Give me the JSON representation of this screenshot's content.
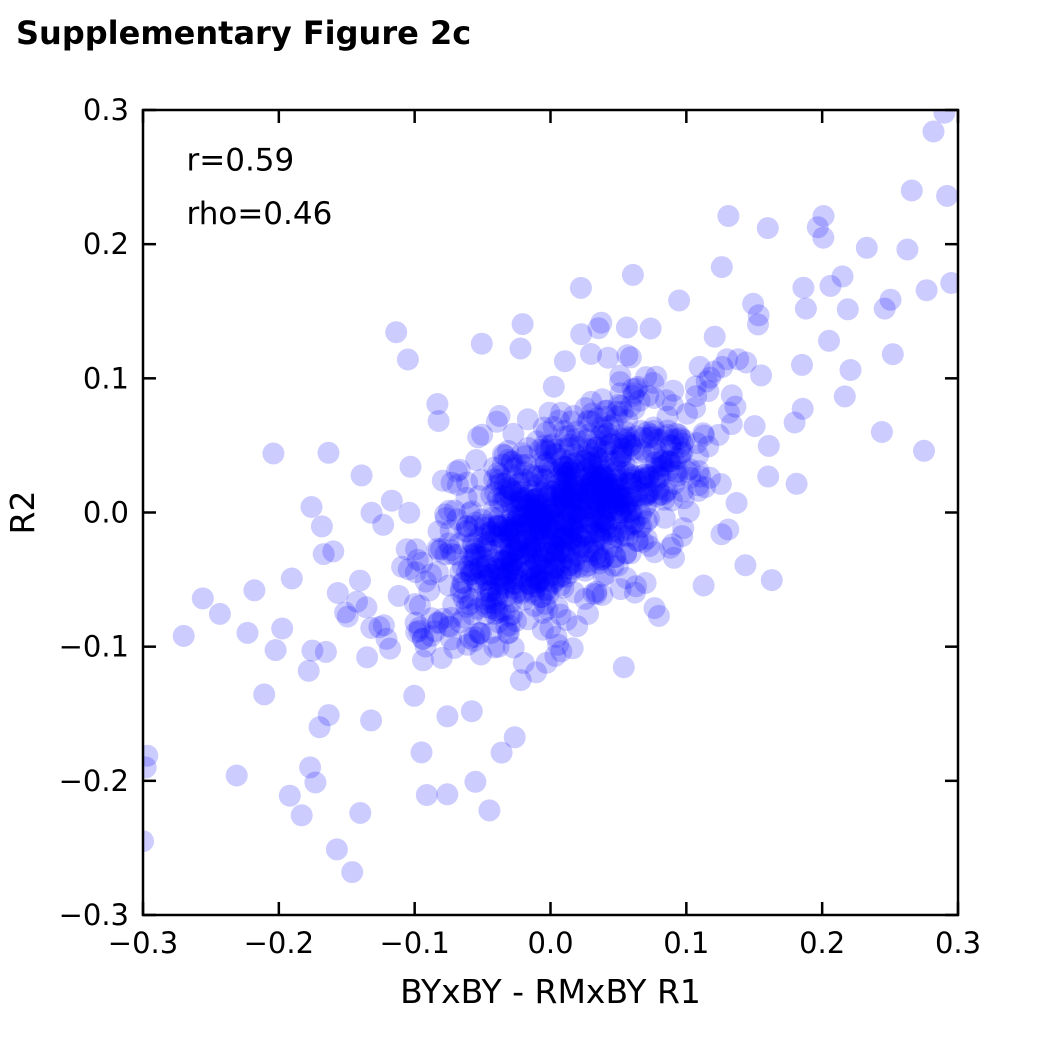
{
  "figure": {
    "title": "Supplementary Figure 2c"
  },
  "chart_data": {
    "type": "scatter",
    "title": "Supplementary Figure 2c",
    "xlabel": "BYxBY - RMxBY R1",
    "ylabel": "R2",
    "xlim": [
      -0.3,
      0.3
    ],
    "ylim": [
      -0.3,
      0.3
    ],
    "xticks": [
      -0.3,
      -0.2,
      -0.1,
      0.0,
      0.1,
      0.2,
      0.3
    ],
    "yticks": [
      -0.3,
      -0.2,
      -0.1,
      0.0,
      0.1,
      0.2,
      0.3
    ],
    "grid": false,
    "legend": "none",
    "stats": {
      "r_pearson": 0.59,
      "rho_spearman": 0.46
    },
    "annotations": [
      {
        "text": "r=0.59",
        "x": -0.268,
        "y": 0.255
      },
      {
        "text": "rho=0.46",
        "x": -0.268,
        "y": 0.215
      }
    ],
    "marker": {
      "shape": "circle",
      "radius_px": 11,
      "color": "#0000ff",
      "alpha": 0.2
    },
    "point_cloud": {
      "description": "dense positively-correlated cluster centered near origin",
      "seed": 42,
      "components": [
        {
          "n": 960,
          "mean": [
            0.008,
            -0.004
          ],
          "sd": [
            0.045,
            0.04
          ],
          "corr": 0.6
        },
        {
          "n": 290,
          "mean": [
            0.0,
            0.0
          ],
          "sd": [
            0.1,
            0.088
          ],
          "corr": 0.62
        }
      ]
    },
    "outlier_points": [
      [
        -0.3,
        -0.245
      ],
      [
        -0.298,
        -0.19
      ],
      [
        -0.231,
        -0.196
      ],
      [
        -0.177,
        -0.19
      ],
      [
        -0.146,
        -0.268
      ],
      [
        -0.14,
        -0.224
      ],
      [
        -0.17,
        -0.16
      ],
      [
        -0.076,
        -0.21
      ],
      [
        -0.045,
        -0.222
      ],
      [
        -0.27,
        -0.092
      ],
      [
        -0.256,
        -0.064
      ],
      [
        -0.218,
        -0.058
      ],
      [
        -0.204,
        0.044
      ],
      [
        -0.178,
        -0.118
      ],
      [
        0.29,
        0.298
      ],
      [
        0.282,
        0.284
      ],
      [
        0.292,
        0.236
      ],
      [
        0.266,
        0.24
      ],
      [
        0.201,
        0.221
      ],
      [
        0.16,
        0.212
      ],
      [
        0.131,
        0.221
      ],
      [
        0.215,
        0.176
      ],
      [
        0.246,
        0.152
      ],
      [
        0.252,
        0.118
      ],
      [
        0.244,
        0.06
      ],
      [
        0.275,
        0.046
      ],
      [
        0.205,
        0.128
      ],
      [
        0.188,
        0.152
      ]
    ]
  }
}
